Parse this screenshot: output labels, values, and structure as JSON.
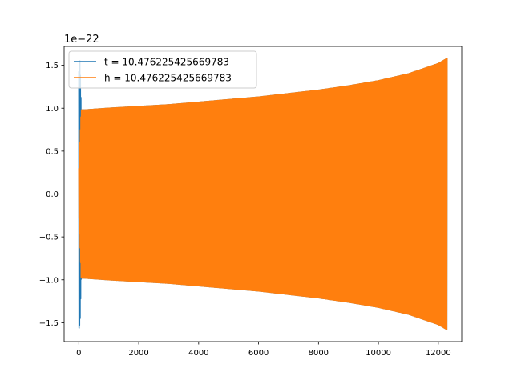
{
  "chart_data": {
    "type": "line",
    "title": "",
    "xlabel": "",
    "ylabel": "",
    "y_offset_label": "1e−22",
    "xlim": [
      -490,
      12780
    ],
    "ylim": [
      -1.72,
      1.72
    ],
    "x_ticks": [
      0,
      2000,
      4000,
      6000,
      8000,
      10000,
      12000
    ],
    "x_tick_labels": [
      "0",
      "2000",
      "4000",
      "6000",
      "8000",
      "10000",
      "12000"
    ],
    "y_ticks": [
      -1.5,
      -1.0,
      -0.5,
      0.0,
      0.5,
      1.0,
      1.5
    ],
    "y_tick_labels": [
      "−1.5",
      "−1.0",
      "−0.5",
      "0.0",
      "0.5",
      "1.0",
      "1.5"
    ],
    "grid": false,
    "legend_position": "top-left",
    "series": [
      {
        "name": "t = 10.476225425669783",
        "color": "#1f77b4",
        "x_range": [
          0,
          12290
        ],
        "envelope": {
          "x": [
            0,
            40,
            80,
            200,
            1000,
            2000,
            3000,
            4000,
            5000,
            6000,
            7000,
            8000,
            9000,
            10000,
            11000,
            12000,
            12290
          ],
          "upper": [
            1.43,
            1.57,
            0.98,
            0.98,
            1.0,
            1.02,
            1.04,
            1.07,
            1.1,
            1.13,
            1.17,
            1.21,
            1.26,
            1.32,
            1.4,
            1.52,
            1.58
          ],
          "lower": [
            -1.58,
            -1.5,
            -0.98,
            -0.98,
            -1.0,
            -1.02,
            -1.04,
            -1.07,
            -1.1,
            -1.13,
            -1.17,
            -1.21,
            -1.26,
            -1.32,
            -1.4,
            -1.52,
            -1.58
          ]
        }
      },
      {
        "name": "h = 10.476225425669783",
        "color": "#ff7f0e",
        "x_range": [
          0,
          12290
        ],
        "envelope": {
          "x": [
            0,
            80,
            200,
            1000,
            2000,
            3000,
            4000,
            5000,
            6000,
            7000,
            8000,
            9000,
            10000,
            11000,
            12000,
            12290
          ],
          "upper": [
            0.3,
            0.98,
            0.98,
            1.0,
            1.02,
            1.04,
            1.07,
            1.1,
            1.13,
            1.17,
            1.21,
            1.26,
            1.32,
            1.4,
            1.52,
            1.58
          ],
          "lower": [
            -0.2,
            -0.98,
            -0.98,
            -1.0,
            -1.02,
            -1.04,
            -1.07,
            -1.1,
            -1.13,
            -1.17,
            -1.21,
            -1.26,
            -1.32,
            -1.4,
            -1.52,
            -1.58
          ]
        }
      }
    ]
  }
}
